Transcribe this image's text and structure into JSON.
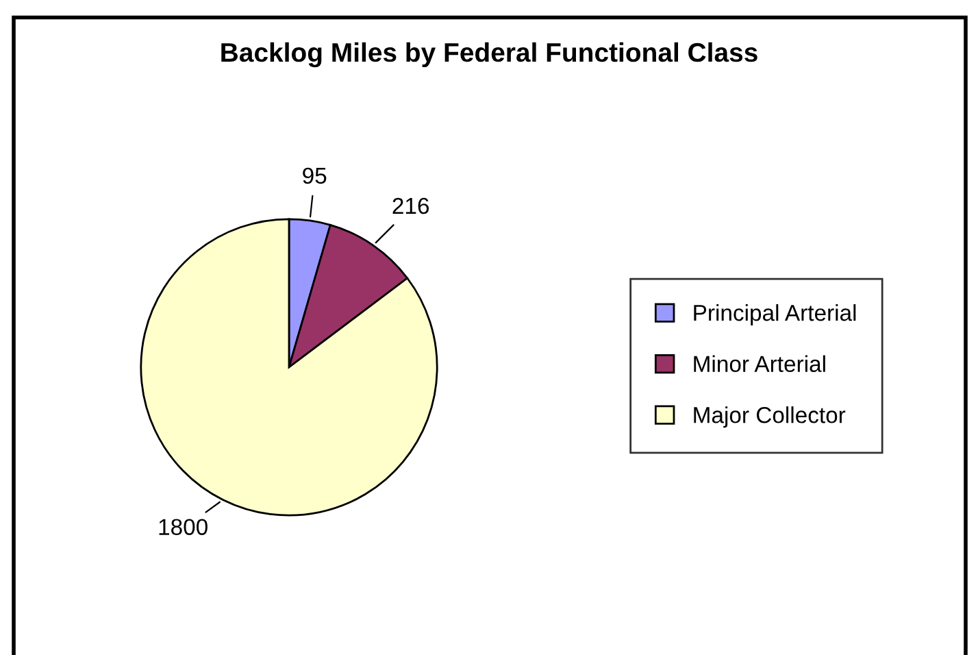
{
  "chart_data": {
    "type": "pie",
    "title": "Backlog Miles by Federal Functional Class",
    "categories": [
      "Principal Arterial",
      "Minor Arterial",
      "Major Collector"
    ],
    "values": [
      95,
      216,
      1800
    ],
    "colors": [
      "#9999ff",
      "#993366",
      "#ffffcc"
    ],
    "data_labels": true,
    "legend": "right"
  }
}
